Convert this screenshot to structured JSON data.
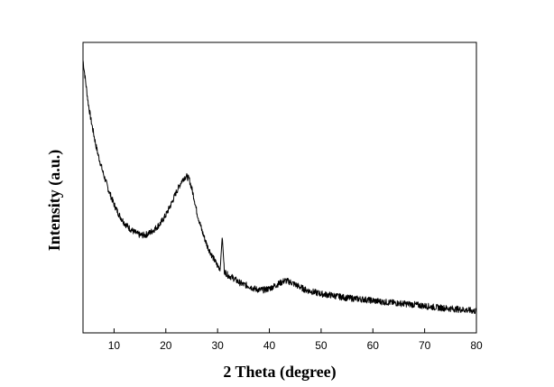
{
  "chart_data": {
    "type": "line",
    "title": "",
    "xlabel": "2 Theta (degree)",
    "ylabel": "Intensity (a.u.)",
    "xlim": [
      4,
      80
    ],
    "ylim": [
      0,
      100
    ],
    "x_ticks": [
      10,
      20,
      30,
      40,
      50,
      60,
      70,
      80
    ],
    "y_ticks_shown": false,
    "grid": false,
    "legend": "none",
    "line_color": "#000000",
    "series": [
      {
        "x": [
          4,
          4.5,
          5,
          5.5,
          6,
          6.5,
          7,
          8,
          9,
          10,
          11,
          12,
          13,
          14,
          15,
          16,
          17,
          18,
          19,
          20,
          21,
          22,
          23,
          23.5,
          24,
          24.5,
          25,
          25.5,
          26,
          27,
          28,
          29,
          30,
          30.5,
          30.9,
          31.3,
          32,
          33,
          34,
          35,
          36,
          37,
          38,
          39,
          40,
          41,
          42,
          43,
          44,
          45,
          46,
          47,
          48,
          50,
          52,
          55,
          58,
          60,
          62,
          65,
          68,
          70,
          72,
          75,
          78,
          80
        ],
        "y": [
          96,
          88,
          80,
          74,
          69,
          64,
          60,
          53,
          47,
          42,
          38,
          35,
          33,
          31.5,
          30.5,
          30.5,
          31.5,
          33,
          35,
          38,
          42,
          46.5,
          50.5,
          52,
          52.5,
          51.5,
          48,
          44,
          39,
          32,
          26.5,
          22.5,
          19,
          18,
          30,
          17,
          15.5,
          14.5,
          13,
          12,
          11.5,
          10.5,
          10,
          10,
          10.5,
          11.5,
          12.5,
          13.5,
          13,
          12,
          11,
          10,
          9.5,
          8.5,
          8,
          7,
          6.5,
          6,
          5.5,
          5,
          4.5,
          4,
          3.5,
          3,
          2.5,
          2
        ]
      }
    ]
  }
}
